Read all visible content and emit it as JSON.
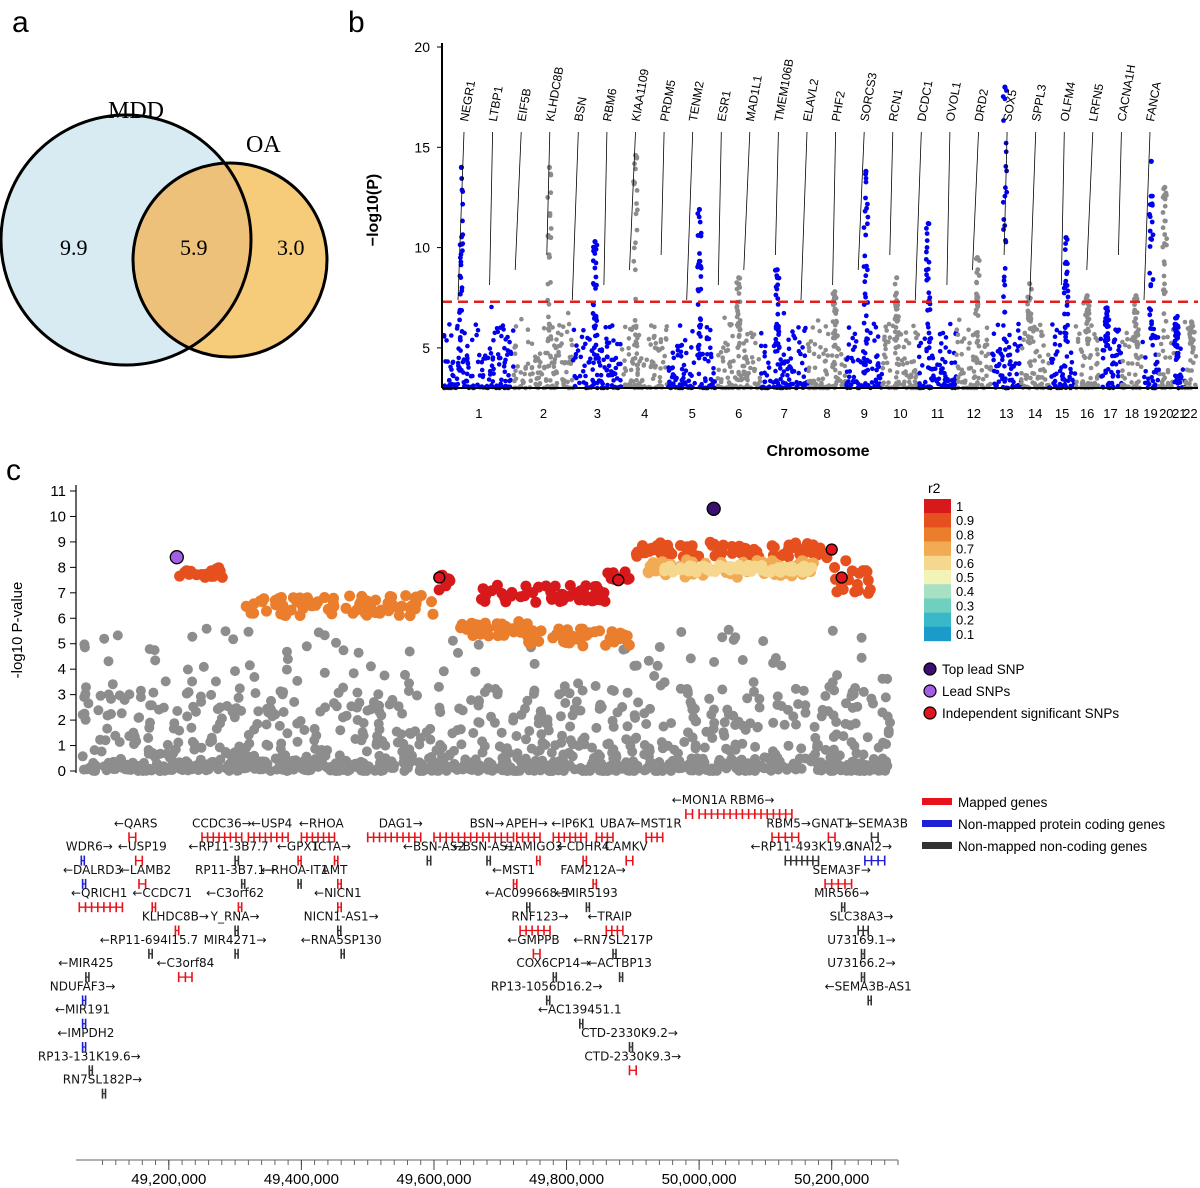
{
  "panels": {
    "a": "a",
    "b": "b",
    "c": "c"
  },
  "chart_data": [
    {
      "type": "venn",
      "sets": [
        {
          "name": "MDD",
          "unique": "9.9",
          "color": "#d8ebf2"
        },
        {
          "name": "OA",
          "unique": "3.0",
          "color": "#f6cb7a"
        }
      ],
      "overlap": "5.9",
      "overlap_color": "#eec17a"
    },
    {
      "type": "scatter",
      "subtype": "manhattan",
      "xlabel": "Chromosome",
      "ylabel": "−log10(P)",
      "ylim": [
        3,
        20
      ],
      "yticks": [
        5,
        10,
        15,
        20
      ],
      "significance_line": 7.3,
      "colors": {
        "odd": "#0000ee",
        "even": "#8c8c8c",
        "threshold": "#e02020"
      },
      "chromosomes": [
        {
          "label": "1",
          "peak": 14
        },
        {
          "label": "2",
          "peak": 14
        },
        {
          "label": "3",
          "peak": 10.3
        },
        {
          "label": "4",
          "peak": 14.6
        },
        {
          "label": "5",
          "peak": 11.9
        },
        {
          "label": "6",
          "peak": 8.5
        },
        {
          "label": "7",
          "peak": 8.9
        },
        {
          "label": "8",
          "peak": 7.8
        },
        {
          "label": "9",
          "peak": 13.8
        },
        {
          "label": "10",
          "peak": 8.5
        },
        {
          "label": "11",
          "peak": 11.2
        },
        {
          "label": "12",
          "peak": 9.5
        },
        {
          "label": "13",
          "peak": 18
        },
        {
          "label": "14",
          "peak": 8.2
        },
        {
          "label": "15",
          "peak": 10.5
        },
        {
          "label": "16",
          "peak": 7.6
        },
        {
          "label": "17",
          "peak": 7
        },
        {
          "label": "18",
          "peak": 7.6
        },
        {
          "label": "19",
          "peak": 14.3
        },
        {
          "label": "20",
          "peak": 13
        },
        {
          "label": "21",
          "peak": 6.5
        },
        {
          "label": "22",
          "peak": 6.3
        }
      ],
      "gene_labels": [
        "NEGR1",
        "LTBP1",
        "EIF5B",
        "KLHDC8B",
        "BSN",
        "RBM6",
        "KIAA1109",
        "PRDM5",
        "TENM2",
        "ESR1",
        "MAD1L1",
        "TMEM106B",
        "ELAVL2",
        "PHF2",
        "SORCS3",
        "RCN1",
        "DCDC1",
        "OVOL1",
        "DRD2",
        "SOX5",
        "SPPL3",
        "OLFM4",
        "LRFN5",
        "CACNA1H",
        "FANCA"
      ]
    },
    {
      "type": "scatter",
      "subtype": "regional-association",
      "ylabel": "-log10 P-value",
      "ylim": [
        0,
        11
      ],
      "yticks": [
        0,
        1,
        2,
        3,
        4,
        5,
        6,
        7,
        8,
        9,
        10,
        11
      ],
      "xlim": [
        49060000,
        50300000
      ],
      "xticks": [
        "49,200,000",
        "49,400,000",
        "49,600,000",
        "49,800,000",
        "50,000,000",
        "50,200,000"
      ],
      "xtick_values": [
        49200000,
        49400000,
        49600000,
        49800000,
        50000000,
        50200000
      ],
      "r2_legend": {
        "title": "r2",
        "levels": [
          "1",
          "0.9",
          "0.8",
          "0.7",
          "0.6",
          "0.5",
          "0.4",
          "0.3",
          "0.2",
          "0.1"
        ],
        "colors": [
          "#d7191c",
          "#e6501f",
          "#ea7e2c",
          "#f2ab55",
          "#f5d78e",
          "#f3f3b8",
          "#a8e0c2",
          "#6fd0c0",
          "#38b8c8",
          "#1a9bc9"
        ]
      },
      "snp_legend": [
        {
          "label": "Top lead SNP",
          "color": "#3b0f6f"
        },
        {
          "label": "Lead SNPs",
          "color": "#a45ee5"
        },
        {
          "label": "Independent significant SNPs",
          "color": "#e0141e"
        }
      ],
      "clusters": [
        {
          "x0": 49215000,
          "x1": 49285000,
          "ylo": 7.6,
          "yhi": 8.0,
          "r2": "0.9"
        },
        {
          "x0": 49310000,
          "x1": 49600000,
          "ylo": 6.1,
          "yhi": 6.9,
          "r2": "0.8"
        },
        {
          "x0": 49600000,
          "x1": 49625000,
          "ylo": 7.1,
          "yhi": 7.7,
          "r2": "1"
        },
        {
          "x0": 49670000,
          "x1": 49860000,
          "ylo": 6.6,
          "yhi": 7.3,
          "r2": "1"
        },
        {
          "x0": 49640000,
          "x1": 49750000,
          "ylo": 5.3,
          "yhi": 5.9,
          "r2": "0.8"
        },
        {
          "x0": 49740000,
          "x1": 49900000,
          "ylo": 4.9,
          "yhi": 5.6,
          "r2": "0.8"
        },
        {
          "x0": 49860000,
          "x1": 49900000,
          "ylo": 7.3,
          "yhi": 7.9,
          "r2": "1"
        },
        {
          "x0": 49900000,
          "x1": 50190000,
          "ylo": 8.4,
          "yhi": 9.0,
          "r2": "0.9"
        },
        {
          "x0": 49920000,
          "x1": 50180000,
          "ylo": 7.6,
          "yhi": 8.3,
          "r2": "0.7"
        },
        {
          "x0": 49940000,
          "x1": 50170000,
          "ylo": 7.8,
          "yhi": 8.1,
          "r2": "0.6"
        },
        {
          "x0": 50190000,
          "x1": 50260000,
          "ylo": 6.9,
          "yhi": 8.5,
          "r2": "0.9"
        }
      ],
      "lead_snps": [
        {
          "x": 49212000,
          "y": 8.4,
          "kind": "lead"
        },
        {
          "x": 50022000,
          "y": 10.3,
          "kind": "top"
        }
      ],
      "independent_snps": [
        {
          "x": 49608000,
          "y": 7.6
        },
        {
          "x": 49878000,
          "y": 7.5
        },
        {
          "x": 50200000,
          "y": 8.7
        },
        {
          "x": 50215000,
          "y": 7.6
        }
      ],
      "gene_legend": [
        {
          "label": "Mapped genes",
          "color": "#e8131a"
        },
        {
          "label": "Non-mapped protein coding genes",
          "color": "#1f1fd6"
        },
        {
          "label": "Non-mapped non-coding genes",
          "color": "#333333"
        }
      ],
      "genes": [
        {
          "label": "←MON1A",
          "x": 50000000,
          "row": 0,
          "c": "r",
          "s": 49980000,
          "e": 49990000
        },
        {
          "label": "RBM6→",
          "x": 50080000,
          "row": 0,
          "c": "r",
          "s": 50000000,
          "e": 50140000
        },
        {
          "label": "←QARS",
          "x": 49150000,
          "row": 1,
          "c": "r",
          "s": 49140000,
          "e": 49150000
        },
        {
          "label": "CCDC36→",
          "x": 49280000,
          "row": 1,
          "c": "r",
          "s": 49250000,
          "e": 49310000
        },
        {
          "label": "←USP4",
          "x": 49355000,
          "row": 1,
          "c": "r",
          "s": 49320000,
          "e": 49380000
        },
        {
          "label": "←RHOA",
          "x": 49430000,
          "row": 1,
          "c": "r",
          "s": 49400000,
          "e": 49450000
        },
        {
          "label": "DAG1→",
          "x": 49550000,
          "row": 1,
          "c": "r",
          "s": 49500000,
          "e": 49580000
        },
        {
          "label": "BSN→",
          "x": 49680000,
          "row": 1,
          "c": "r",
          "s": 49600000,
          "e": 49720000
        },
        {
          "label": "APEH→",
          "x": 49740000,
          "row": 1,
          "c": "r",
          "s": 49725000,
          "e": 49760000
        },
        {
          "label": "←IP6K1",
          "x": 49810000,
          "row": 1,
          "c": "r",
          "s": 49780000,
          "e": 49830000
        },
        {
          "label": "UBA7",
          "x": 49875000,
          "row": 1,
          "c": "r",
          "s": 49845000,
          "e": 49870000
        },
        {
          "label": "←MST1R",
          "x": 49935000,
          "row": 1,
          "c": "r",
          "s": 49920000,
          "e": 49945000
        },
        {
          "label": "RBM5→",
          "x": 50135000,
          "row": 1,
          "c": "r",
          "s": 50110000,
          "e": 50150000
        },
        {
          "label": "GNAT1",
          "x": 50200000,
          "row": 1,
          "c": "r",
          "s": 50195000,
          "e": 50205000
        },
        {
          "label": "←SEMA3B",
          "x": 50270000,
          "row": 1,
          "c": "k",
          "s": 50260000,
          "e": 50270000
        },
        {
          "label": "WDR6→",
          "x": 49080000,
          "row": 2,
          "c": "b",
          "s": 49068000,
          "e": 49072000
        },
        {
          "label": "←USP19",
          "x": 49160000,
          "row": 2,
          "c": "r",
          "s": 49150000,
          "e": 49160000
        },
        {
          "label": "←RP11-3B7.7",
          "x": 49290000,
          "row": 2,
          "c": "k",
          "s": 49300000,
          "e": 49305000
        },
        {
          "label": "←GPX1",
          "x": 49395000,
          "row": 2,
          "c": "r",
          "s": 49395000,
          "e": 49398000
        },
        {
          "label": "TCTA→",
          "x": 49445000,
          "row": 2,
          "c": "r",
          "s": 49450000,
          "e": 49455000
        },
        {
          "label": "←BSN-AS2",
          "x": 49600000,
          "row": 2,
          "c": "k",
          "s": 49590000,
          "e": 49595000
        },
        {
          "label": "←BSN-AS1",
          "x": 49675000,
          "row": 2,
          "c": "k",
          "s": 49680000,
          "e": 49685000
        },
        {
          "label": "←AMIGO3",
          "x": 49750000,
          "row": 2,
          "c": "r",
          "s": 49755000,
          "e": 49760000
        },
        {
          "label": "←CDHR4",
          "x": 49825000,
          "row": 2,
          "c": "r",
          "s": 49825000,
          "e": 49830000
        },
        {
          "label": "CAMKV",
          "x": 49890000,
          "row": 2,
          "c": "r",
          "s": 49890000,
          "e": 49900000
        },
        {
          "label": "←RP11-493K19.3",
          "x": 50155000,
          "row": 2,
          "c": "k",
          "s": 50130000,
          "e": 50180000
        },
        {
          "label": "GNAI2→",
          "x": 50255000,
          "row": 2,
          "c": "b",
          "s": 50250000,
          "e": 50280000
        },
        {
          "label": "←DALRD3",
          "x": 49085000,
          "row": 3,
          "c": "b",
          "s": 49070000,
          "e": 49073000
        },
        {
          "label": "←LAMB2",
          "x": 49165000,
          "row": 3,
          "c": "r",
          "s": 49155000,
          "e": 49165000
        },
        {
          "label": "RP11-3B7.1→",
          "x": 49300000,
          "row": 3,
          "c": "k",
          "s": 49310000,
          "e": 49312000
        },
        {
          "label": "←RHOA-IT1",
          "x": 49390000,
          "row": 3,
          "c": "k",
          "s": 49395000,
          "e": 49397000
        },
        {
          "label": "AMT",
          "x": 49450000,
          "row": 3,
          "c": "r",
          "s": 49455000,
          "e": 49460000
        },
        {
          "label": "←MST1",
          "x": 49720000,
          "row": 3,
          "c": "r",
          "s": 49720000,
          "e": 49725000
        },
        {
          "label": "FAM212A→",
          "x": 49840000,
          "row": 3,
          "c": "r",
          "s": 49840000,
          "e": 49845000
        },
        {
          "label": "SEMA3F→",
          "x": 50215000,
          "row": 3,
          "c": "r",
          "s": 50190000,
          "e": 50230000
        },
        {
          "label": "←QRICH1",
          "x": 49095000,
          "row": 4,
          "c": "r",
          "s": 49065000,
          "e": 49130000
        },
        {
          "label": "←CCDC71",
          "x": 49190000,
          "row": 4,
          "c": "r",
          "s": 49175000,
          "e": 49180000
        },
        {
          "label": "←C3orf62",
          "x": 49300000,
          "row": 4,
          "c": "r",
          "s": 49305000,
          "e": 49310000
        },
        {
          "label": "←NICN1",
          "x": 49455000,
          "row": 4,
          "c": "r",
          "s": 49455000,
          "e": 49460000
        },
        {
          "label": "←AC099668.5",
          "x": 49740000,
          "row": 4,
          "c": "k",
          "s": 49740000,
          "e": 49742000
        },
        {
          "label": "←MIR5193",
          "x": 49830000,
          "row": 4,
          "c": "k",
          "s": 49830000,
          "e": 49832000
        },
        {
          "label": "MIR566→",
          "x": 50215000,
          "row": 4,
          "c": "k",
          "s": 50215000,
          "e": 50216000
        },
        {
          "label": "KLHDC8B→",
          "x": 49210000,
          "row": 5,
          "c": "r",
          "s": 49210000,
          "e": 49215000
        },
        {
          "label": "Y_RNA→",
          "x": 49300000,
          "row": 5,
          "c": "k",
          "s": 49300000,
          "e": 49302000
        },
        {
          "label": "NICN1-AS1→",
          "x": 49460000,
          "row": 5,
          "c": "k",
          "s": 49455000,
          "e": 49457000
        },
        {
          "label": "RNF123→",
          "x": 49760000,
          "row": 5,
          "c": "r",
          "s": 49730000,
          "e": 49775000
        },
        {
          "label": "←TRAIP",
          "x": 49865000,
          "row": 5,
          "c": "r",
          "s": 49860000,
          "e": 49885000
        },
        {
          "label": "SLC38A3→",
          "x": 50245000,
          "row": 5,
          "c": "k",
          "s": 50240000,
          "e": 50255000
        },
        {
          "label": "←RP11-694I15.7",
          "x": 49170000,
          "row": 6,
          "c": "k",
          "s": 49170000,
          "e": 49175000
        },
        {
          "label": "MIR4271→",
          "x": 49300000,
          "row": 6,
          "c": "k",
          "s": 49300000,
          "e": 49301000
        },
        {
          "label": "←RNA5SP130",
          "x": 49460000,
          "row": 6,
          "c": "k",
          "s": 49460000,
          "e": 49461000
        },
        {
          "label": "←GMPPB",
          "x": 49750000,
          "row": 6,
          "c": "r",
          "s": 49750000,
          "e": 49760000
        },
        {
          "label": "←RN7SL217P",
          "x": 49870000,
          "row": 6,
          "c": "k",
          "s": 49870000,
          "e": 49871000
        },
        {
          "label": "U73169.1→",
          "x": 50245000,
          "row": 6,
          "c": "k",
          "s": 50245000,
          "e": 50246000
        },
        {
          "label": "←C3orf84",
          "x": 49225000,
          "row": 7,
          "c": "r",
          "s": 49215000,
          "e": 49235000
        },
        {
          "label": "COX6CP14→",
          "x": 49780000,
          "row": 7,
          "c": "k",
          "s": 49780000,
          "e": 49781000
        },
        {
          "label": "←ACTBP13",
          "x": 49880000,
          "row": 7,
          "c": "k",
          "s": 49880000,
          "e": 49881000
        },
        {
          "label": "U73166.2→",
          "x": 50245000,
          "row": 7,
          "c": "k",
          "s": 50245000,
          "e": 50246000
        },
        {
          "label": "←MIR425",
          "x": 49075000,
          "row": 7,
          "c": "k",
          "s": 49075000,
          "e": 49076000
        },
        {
          "label": "NDUFAF3→",
          "x": 49070000,
          "row": 8,
          "c": "b",
          "s": 49070000,
          "e": 49073000
        },
        {
          "label": "RP13-1056D16.2→",
          "x": 49770000,
          "row": 8,
          "c": "k",
          "s": 49770000,
          "e": 49771000
        },
        {
          "label": "←SEMA3B-AS1",
          "x": 50255000,
          "row": 8,
          "c": "k",
          "s": 50255000,
          "e": 50256000
        },
        {
          "label": "←MIR191",
          "x": 49070000,
          "row": 9,
          "c": "b",
          "s": 49070000,
          "e": 49071000
        },
        {
          "label": "←AC139451.1",
          "x": 49820000,
          "row": 9,
          "c": "k",
          "s": 49820000,
          "e": 49821000
        },
        {
          "label": "←IMPDH2",
          "x": 49075000,
          "row": 10,
          "c": "b",
          "s": 49070000,
          "e": 49073000
        },
        {
          "label": "CTD-2330K9.2→",
          "x": 49895000,
          "row": 10,
          "c": "k",
          "s": 49895000,
          "e": 49896000
        },
        {
          "label": "RP13-131K19.6→",
          "x": 49080000,
          "row": 11,
          "c": "k",
          "s": 49080000,
          "e": 49081000
        },
        {
          "label": "CTD-2330K9.3→",
          "x": 49900000,
          "row": 11,
          "c": "r",
          "s": 49895000,
          "e": 49905000
        },
        {
          "label": "RN7SL182P→",
          "x": 49100000,
          "row": 12,
          "c": "k",
          "s": 49100000,
          "e": 49101000
        }
      ]
    }
  ]
}
